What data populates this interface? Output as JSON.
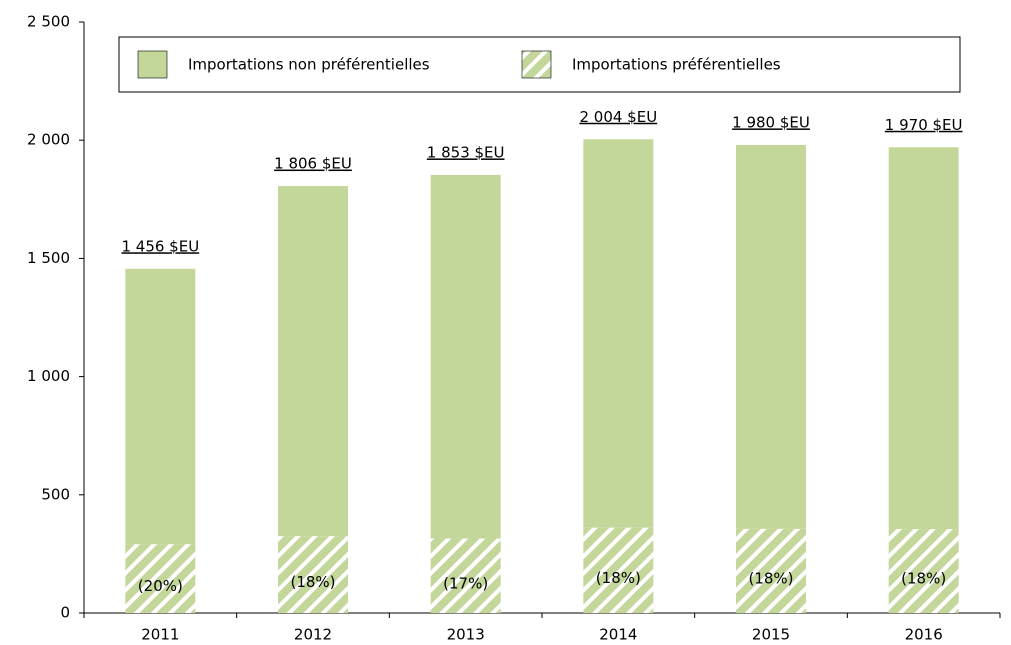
{
  "chart_data": {
    "type": "stacked_bar",
    "categories": [
      "2011",
      "2012",
      "2013",
      "2014",
      "2015",
      "2016"
    ],
    "series": [
      {
        "name": "Importations préférentielles",
        "color": "#c4d79b",
        "hatch": true,
        "values": [
          291,
          325,
          315,
          361,
          356,
          355
        ],
        "shares": [
          20,
          18,
          17,
          18,
          18,
          18
        ],
        "share_labels": [
          "(20%)",
          "(18%)",
          "(17%)",
          "(18%)",
          "(18%)",
          "(18%)"
        ]
      },
      {
        "name": "Importations non préférentielles",
        "color": "#c4d79b",
        "hatch": false,
        "values": [
          1165,
          1481,
          1538,
          1643,
          1624,
          1615
        ]
      }
    ],
    "legend_order": [
      1,
      0
    ],
    "totals": [
      1456,
      1806,
      1853,
      2004,
      1980,
      1970
    ],
    "total_labels": [
      "1 456 $EU",
      "1 806 $EU",
      "1 853 $EU",
      "2 004 $EU",
      "1 980 $EU",
      "1 970 $EU"
    ],
    "ylim": [
      0,
      2500
    ],
    "yticks": [
      0,
      500,
      {
        "value": 1000,
        "label": "1 000"
      },
      {
        "value": 1500,
        "label": "1 500"
      },
      {
        "value": 2000,
        "label": "2 000"
      },
      {
        "value": 2500,
        "label": "2 500"
      }
    ],
    "grid": false,
    "legend": "top"
  }
}
